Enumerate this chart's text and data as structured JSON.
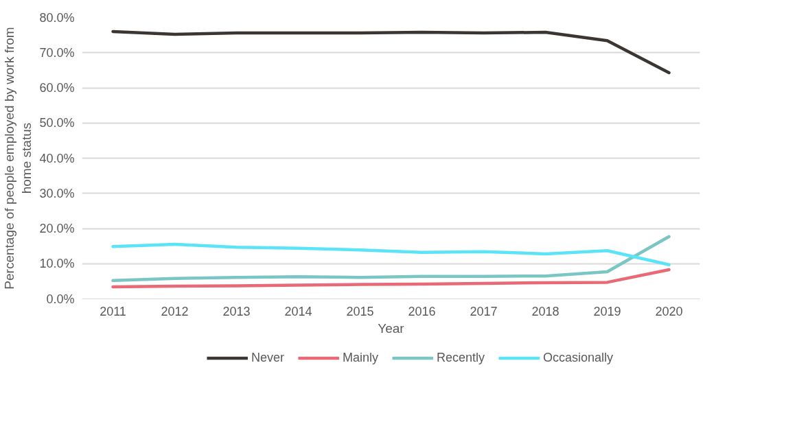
{
  "chart_data": {
    "type": "line",
    "xlabel": "Year",
    "ylabel": "Percentage of people employed by work from home status",
    "categories": [
      "2011",
      "2012",
      "2013",
      "2014",
      "2015",
      "2016",
      "2017",
      "2018",
      "2019",
      "2020"
    ],
    "series": [
      {
        "name": "Never",
        "color": "#3c3633",
        "values": [
          76.0,
          75.2,
          75.6,
          75.6,
          75.6,
          75.8,
          75.6,
          75.8,
          73.4,
          64.3
        ]
      },
      {
        "name": "Mainly",
        "color": "#e96a77",
        "values": [
          3.4,
          3.6,
          3.7,
          3.9,
          4.1,
          4.2,
          4.4,
          4.6,
          4.7,
          8.3
        ]
      },
      {
        "name": "Recently",
        "color": "#7ac6c4",
        "values": [
          5.2,
          5.8,
          6.1,
          6.3,
          6.1,
          6.4,
          6.4,
          6.5,
          7.7,
          17.7
        ]
      },
      {
        "name": "Occasionally",
        "color": "#5be3f8",
        "values": [
          14.9,
          15.5,
          14.7,
          14.4,
          13.9,
          13.2,
          13.4,
          12.8,
          13.7,
          9.7
        ]
      }
    ],
    "ylim": [
      0,
      80
    ],
    "yticks": [
      {
        "value": 0,
        "label": "0.0%"
      },
      {
        "value": 10,
        "label": "10.0%"
      },
      {
        "value": 20,
        "label": "20.0%"
      },
      {
        "value": 30,
        "label": "30.0%"
      },
      {
        "value": 40,
        "label": "40.0%"
      },
      {
        "value": 50,
        "label": "50.0%"
      },
      {
        "value": 60,
        "label": "60.0%"
      },
      {
        "value": 70,
        "label": "70.0%"
      },
      {
        "value": 80,
        "label": "80.0%"
      }
    ],
    "grid": "y",
    "legend": "bottom",
    "marker": "none",
    "line_style": "solid"
  }
}
